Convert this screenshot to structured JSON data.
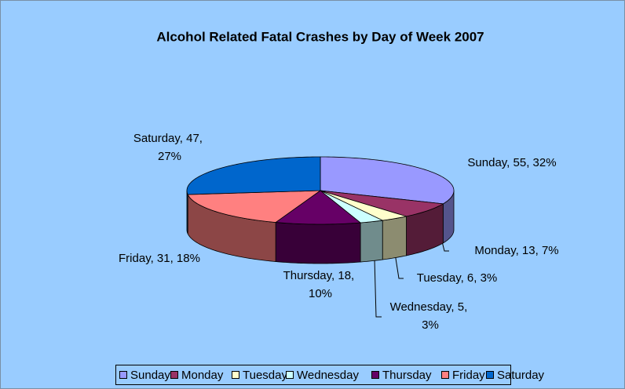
{
  "chart_data": {
    "type": "pie",
    "title": "Alcohol Related Fatal Crashes by Day of Week 2007",
    "categories": [
      "Sunday",
      "Monday",
      "Tuesday",
      "Wednesday",
      "Thursday",
      "Friday",
      "Saturday"
    ],
    "values": [
      55,
      13,
      6,
      5,
      18,
      31,
      47
    ],
    "value_labels": [
      "Sunday, 55, 32%",
      "Monday, 13, 7%",
      "Tuesday, 6, 3%",
      "Wednesday, 5, 3%",
      "Thursday, 18, 10%",
      "Friday, 31, 18%",
      "Saturday, 47, 27%"
    ],
    "colors": [
      "#9999ff",
      "#993366",
      "#ffffcc",
      "#ccffff",
      "#660066",
      "#ff8080",
      "#0066cc"
    ],
    "legend": "bottom"
  }
}
